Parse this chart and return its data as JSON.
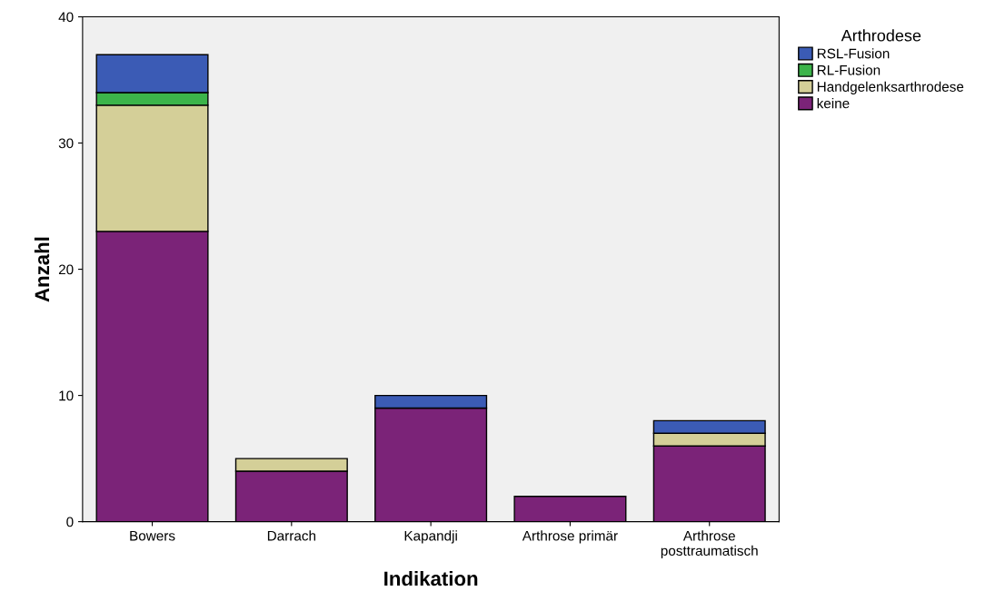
{
  "chart_data": {
    "type": "bar",
    "stacked": true,
    "xlabel": "Indikation",
    "ylabel": "Anzahl",
    "legend_title": "Arthrodese",
    "categories": [
      "Bowers",
      "Darrach",
      "Kapandji",
      "Arthrose primär",
      "Arthrose\nposttraumatisch"
    ],
    "series": [
      {
        "name": "keine",
        "color": "#7b2378",
        "values": [
          23,
          4,
          9,
          2,
          6
        ]
      },
      {
        "name": "Handgelenksarthrodese",
        "color": "#d4cf98",
        "values": [
          10,
          1,
          null,
          null,
          1
        ]
      },
      {
        "name": "RL-Fusion",
        "color": "#3cb44a",
        "values": [
          1,
          null,
          null,
          null,
          null
        ]
      },
      {
        "name": "RSL-Fusion",
        "color": "#3b5bb5",
        "values": [
          3,
          null,
          1,
          null,
          1
        ]
      }
    ],
    "ylim": [
      0,
      40
    ],
    "yticks": [
      0,
      10,
      20,
      30,
      40
    ],
    "grid": false,
    "legend": "top right"
  }
}
